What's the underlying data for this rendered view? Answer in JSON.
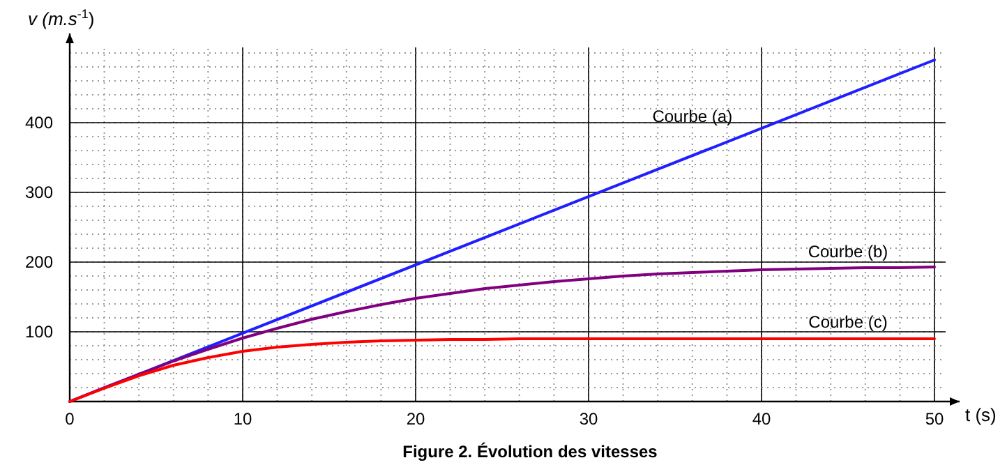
{
  "chart_data": {
    "type": "line",
    "title": "Figure 2. Évolution des vitesses",
    "xlabel": "t (s)",
    "ylabel": "v (m.s$^{-1}$)",
    "x": [
      0,
      2,
      4,
      6,
      8,
      10,
      12,
      14,
      16,
      18,
      20,
      22,
      24,
      26,
      28,
      30,
      32,
      34,
      36,
      38,
      40,
      42,
      44,
      46,
      48,
      50
    ],
    "series": [
      {
        "name": "Courbe (a)",
        "color": "#1f1fff",
        "x": [
          0,
          50
        ],
        "values": [
          0,
          490
        ]
      },
      {
        "name": "Courbe (b)",
        "color": "#800080",
        "values": [
          0,
          20,
          39,
          58,
          75,
          91,
          105,
          118,
          129,
          139,
          148,
          155,
          162,
          167,
          172,
          176,
          180,
          183,
          185,
          187,
          189,
          190,
          191,
          192,
          192,
          193
        ]
      },
      {
        "name": "Courbe (c)",
        "color": "#ff0000",
        "values": [
          0,
          19,
          37,
          52,
          63,
          72,
          78,
          82,
          85,
          87,
          88,
          89,
          89,
          90,
          90,
          90,
          90,
          90,
          90,
          90,
          90,
          90,
          90,
          90,
          90,
          90
        ]
      }
    ],
    "xlim": [
      0,
      50
    ],
    "ylim": [
      0,
      500
    ],
    "xticks": [
      0,
      10,
      20,
      30,
      40,
      50
    ],
    "yticks": [
      100,
      200,
      300,
      400
    ],
    "grid": true,
    "marker": "none",
    "line_style": "solid"
  }
}
